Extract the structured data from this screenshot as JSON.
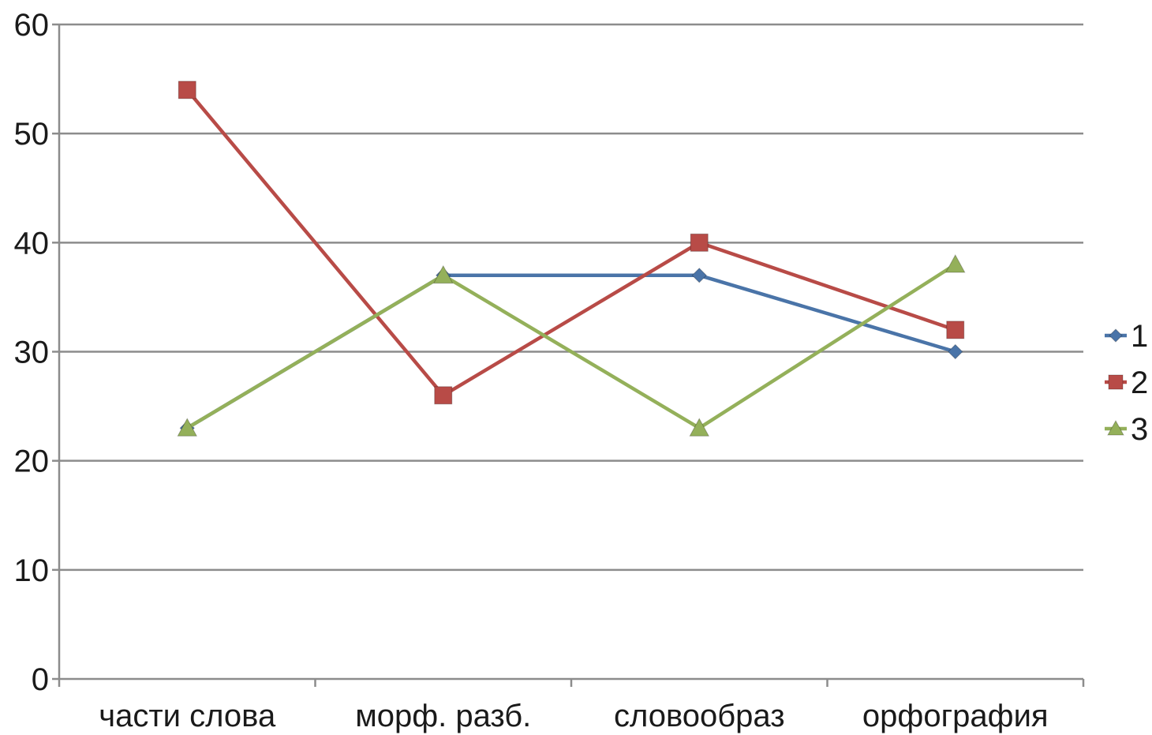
{
  "chart_data": {
    "type": "line",
    "title": "",
    "xlabel": "",
    "ylabel": "",
    "categories": [
      "части слова",
      "морф. разб.",
      "словообраз",
      "орфография"
    ],
    "series": [
      {
        "name": "1",
        "values": [
          23,
          37,
          37,
          30
        ],
        "color": "#4a74a8",
        "marker": "diamond"
      },
      {
        "name": "2",
        "values": [
          54,
          26,
          40,
          32
        ],
        "color": "#b84b47",
        "marker": "square"
      },
      {
        "name": "3",
        "values": [
          23,
          37,
          23,
          38
        ],
        "color": "#94b05a",
        "marker": "triangle"
      }
    ],
    "ylim": [
      0,
      60
    ],
    "yticks": [
      "0",
      "10",
      "20",
      "30",
      "40",
      "50",
      "60"
    ],
    "grid": true,
    "legend": "right"
  }
}
